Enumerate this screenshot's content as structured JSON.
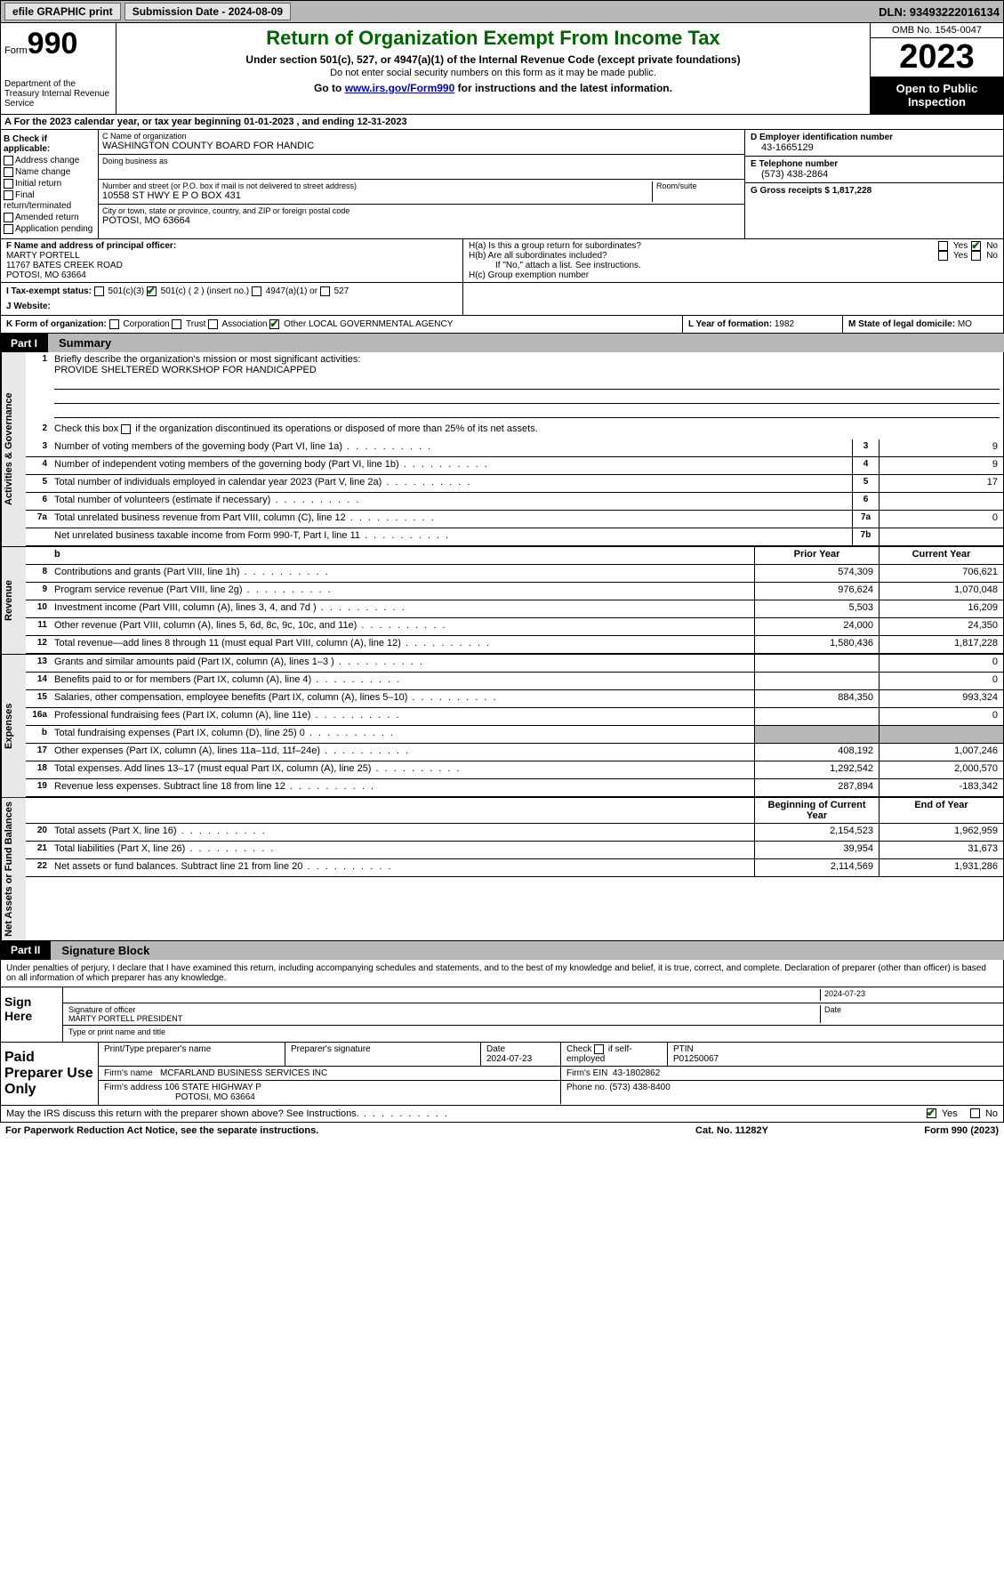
{
  "topbar": {
    "btn1": "efile GRAPHIC print",
    "btn2": "Submission Date - 2024-08-09",
    "dln": "DLN: 93493222016134"
  },
  "header": {
    "form_word": "Form",
    "form_num": "990",
    "dept": "Department of the Treasury Internal Revenue Service",
    "title": "Return of Organization Exempt From Income Tax",
    "sub": "Under section 501(c), 527, or 4947(a)(1) of the Internal Revenue Code (except private foundations)",
    "sub2": "Do not enter social security numbers on this form as it may be made public.",
    "sub3_pre": "Go to ",
    "sub3_link": "www.irs.gov/Form990",
    "sub3_post": " for instructions and the latest information.",
    "omb": "OMB No. 1545-0047",
    "year": "2023",
    "inspect": "Open to Public Inspection"
  },
  "lineA": "A For the 2023 calendar year, or tax year beginning 01-01-2023   , and ending 12-31-2023",
  "boxB": {
    "title": "B Check if applicable:",
    "items": [
      "Address change",
      "Name change",
      "Initial return",
      "Final return/terminated",
      "Amended return",
      "Application pending"
    ]
  },
  "boxC": {
    "name_lbl": "C Name of organization",
    "name": "WASHINGTON COUNTY BOARD FOR HANDIC",
    "dba_lbl": "Doing business as",
    "street_lbl": "Number and street (or P.O. box if mail is not delivered to street address)",
    "room_lbl": "Room/suite",
    "street": "10558 ST HWY E P O BOX 431",
    "city_lbl": "City or town, state or province, country, and ZIP or foreign postal code",
    "city": "POTOSI, MO  63664"
  },
  "boxD": {
    "lbl": "D Employer identification number",
    "val": "43-1665129"
  },
  "boxE": {
    "lbl": "E Telephone number",
    "val": "(573) 438-2864"
  },
  "boxG": {
    "lbl": "G Gross receipts $",
    "val": "1,817,228"
  },
  "boxF": {
    "lbl": "F  Name and address of principal officer:",
    "name": "MARTY PORTELL",
    "addr1": "11767 BATES CREEK ROAD",
    "addr2": "POTOSI, MO  63664"
  },
  "boxH": {
    "a_lbl": "H(a)  Is this a group return for subordinates?",
    "b_lbl": "H(b)  Are all subordinates included?",
    "b_note": "If \"No,\" attach a list. See instructions.",
    "c_lbl": "H(c)  Group exemption number"
  },
  "boxI": {
    "lbl": "I   Tax-exempt status:",
    "o1": "501(c)(3)",
    "o2": "501(c) ( 2 ) (insert no.)",
    "o3": "4947(a)(1) or",
    "o4": "527"
  },
  "boxJ": {
    "lbl": "J   Website:"
  },
  "boxK": {
    "lbl": "K Form of organization:",
    "o1": "Corporation",
    "o2": "Trust",
    "o3": "Association",
    "o4": "Other",
    "other": "LOCAL GOVERNMENTAL AGENCY"
  },
  "boxL": {
    "lbl": "L Year of formation:",
    "val": "1982"
  },
  "boxM": {
    "lbl": "M State of legal domicile:",
    "val": "MO"
  },
  "partI": {
    "num": "Part I",
    "title": "Summary"
  },
  "summary": {
    "s1_lbl": "Briefly describe the organization's mission or most significant activities:",
    "s1_val": "PROVIDE SHELTERED WORKSHOP FOR HANDICAPPED",
    "s2": "Check this box       if the organization discontinued its operations or disposed of more than 25% of its net assets.",
    "rows_gov": [
      {
        "n": "3",
        "t": "Number of voting members of the governing body (Part VI, line 1a)",
        "ln": "3",
        "v": "9"
      },
      {
        "n": "4",
        "t": "Number of independent voting members of the governing body (Part VI, line 1b)",
        "ln": "4",
        "v": "9"
      },
      {
        "n": "5",
        "t": "Total number of individuals employed in calendar year 2023 (Part V, line 2a)",
        "ln": "5",
        "v": "17"
      },
      {
        "n": "6",
        "t": "Total number of volunteers (estimate if necessary)",
        "ln": "6",
        "v": ""
      },
      {
        "n": "7a",
        "t": "Total unrelated business revenue from Part VIII, column (C), line 12",
        "ln": "7a",
        "v": "0"
      },
      {
        "n": "",
        "t": "Net unrelated business taxable income from Form 990-T, Part I, line 11",
        "ln": "7b",
        "v": ""
      }
    ],
    "col_prior": "Prior Year",
    "col_curr": "Current Year",
    "rows_rev": [
      {
        "n": "8",
        "t": "Contributions and grants (Part VIII, line 1h)",
        "p": "574,309",
        "c": "706,621"
      },
      {
        "n": "9",
        "t": "Program service revenue (Part VIII, line 2g)",
        "p": "976,624",
        "c": "1,070,048"
      },
      {
        "n": "10",
        "t": "Investment income (Part VIII, column (A), lines 3, 4, and 7d )",
        "p": "5,503",
        "c": "16,209"
      },
      {
        "n": "11",
        "t": "Other revenue (Part VIII, column (A), lines 5, 6d, 8c, 9c, 10c, and 11e)",
        "p": "24,000",
        "c": "24,350"
      },
      {
        "n": "12",
        "t": "Total revenue—add lines 8 through 11 (must equal Part VIII, column (A), line 12)",
        "p": "1,580,436",
        "c": "1,817,228"
      }
    ],
    "rows_exp": [
      {
        "n": "13",
        "t": "Grants and similar amounts paid (Part IX, column (A), lines 1–3 )",
        "p": "",
        "c": "0"
      },
      {
        "n": "14",
        "t": "Benefits paid to or for members (Part IX, column (A), line 4)",
        "p": "",
        "c": "0"
      },
      {
        "n": "15",
        "t": "Salaries, other compensation, employee benefits (Part IX, column (A), lines 5–10)",
        "p": "884,350",
        "c": "993,324"
      },
      {
        "n": "16a",
        "t": "Professional fundraising fees (Part IX, column (A), line 11e)",
        "p": "",
        "c": "0"
      },
      {
        "n": "b",
        "t": "Total fundraising expenses (Part IX, column (D), line 25) 0",
        "p": "shade",
        "c": "shade"
      },
      {
        "n": "17",
        "t": "Other expenses (Part IX, column (A), lines 11a–11d, 11f–24e)",
        "p": "408,192",
        "c": "1,007,246"
      },
      {
        "n": "18",
        "t": "Total expenses. Add lines 13–17 (must equal Part IX, column (A), line 25)",
        "p": "1,292,542",
        "c": "2,000,570"
      },
      {
        "n": "19",
        "t": "Revenue less expenses. Subtract line 18 from line 12",
        "p": "287,894",
        "c": "-183,342"
      }
    ],
    "col_boy": "Beginning of Current Year",
    "col_eoy": "End of Year",
    "rows_net": [
      {
        "n": "20",
        "t": "Total assets (Part X, line 16)",
        "p": "2,154,523",
        "c": "1,962,959"
      },
      {
        "n": "21",
        "t": "Total liabilities (Part X, line 26)",
        "p": "39,954",
        "c": "31,673"
      },
      {
        "n": "22",
        "t": "Net assets or fund balances. Subtract line 21 from line 20",
        "p": "2,114,569",
        "c": "1,931,286"
      }
    ],
    "tab_gov": "Activities & Governance",
    "tab_rev": "Revenue",
    "tab_exp": "Expenses",
    "tab_net": "Net Assets or Fund Balances"
  },
  "partII": {
    "num": "Part II",
    "title": "Signature Block",
    "decl": "Under penalties of perjury, I declare that I have examined this return, including accompanying schedules and statements, and to the best of my knowledge and belief, it is true, correct, and complete. Declaration of preparer (other than officer) is based on all information of which preparer has any knowledge."
  },
  "sign": {
    "here": "Sign Here",
    "sig_lbl": "Signature of officer",
    "date": "2024-07-23",
    "date_lbl": "Date",
    "name": "MARTY PORTELL PRESIDENT",
    "name_lbl": "Type or print name and title"
  },
  "prep": {
    "title": "Paid Preparer Use Only",
    "h1": "Print/Type preparer's name",
    "h2": "Preparer's signature",
    "h3_lbl": "Date",
    "h3": "2024-07-23",
    "h4": "Check       if self-employed",
    "h5_lbl": "PTIN",
    "h5": "P01250067",
    "firm_lbl": "Firm's name",
    "firm": "MCFARLAND BUSINESS SERVICES INC",
    "ein_lbl": "Firm's EIN",
    "ein": "43-1802862",
    "addr_lbl": "Firm's address",
    "addr1": "106 STATE HIGHWAY P",
    "addr2": "POTOSI, MO  63664",
    "phone_lbl": "Phone no.",
    "phone": "(573) 438-8400"
  },
  "discuss": "May the IRS discuss this return with the preparer shown above? See Instructions.",
  "footer": {
    "left": "For Paperwork Reduction Act Notice, see the separate instructions.",
    "mid": "Cat. No. 11282Y",
    "right": "Form 990 (2023)"
  },
  "yn": {
    "yes": "Yes",
    "no": "No"
  }
}
